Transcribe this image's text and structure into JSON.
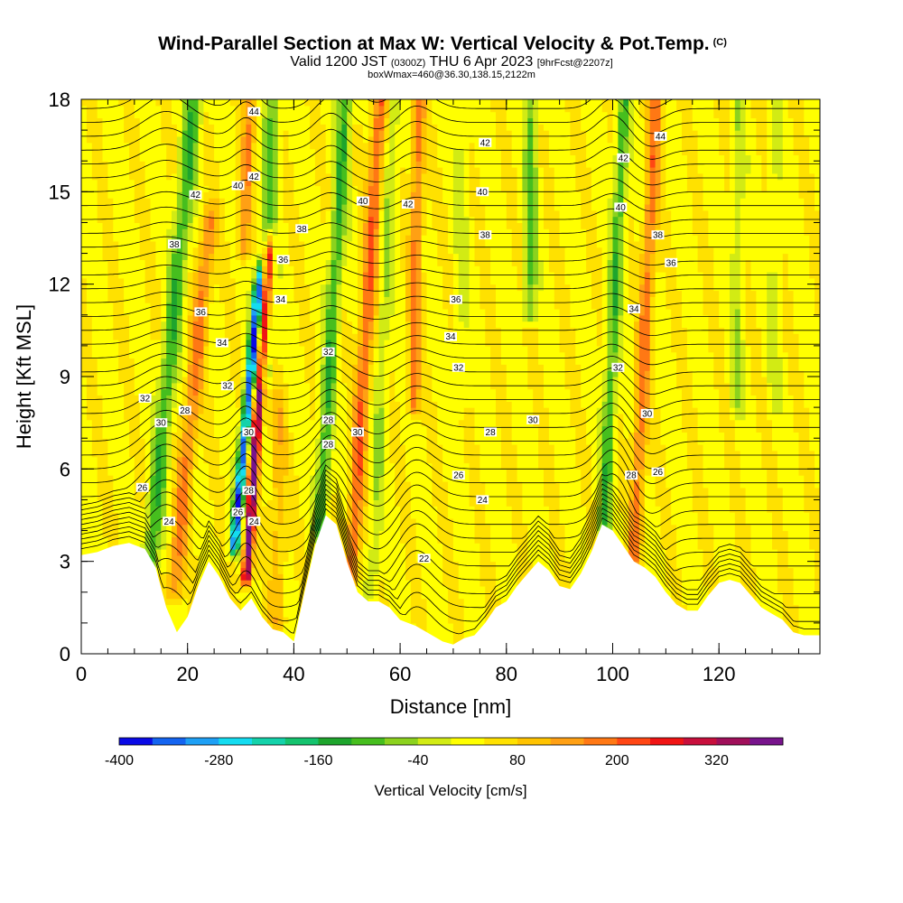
{
  "title": {
    "main": "Wind-Parallel Section at Max W: Vertical Velocity & Pot.Temp.",
    "copyright": "(C)",
    "line2_a": "Valid 1200 JST",
    "line2_b": "(0300Z)",
    "line2_c": "THU 6 Apr 2023",
    "line2_d": "[9hrFcst@2207z]",
    "line3": "boxWmax=460@36.30,138.15,2122m"
  },
  "chart_data": {
    "type": "heatmap",
    "xlabel": "Distance [nm]",
    "ylabel": "Height [Kft MSL]",
    "xlim": [
      0,
      139
    ],
    "ylim": [
      0,
      18
    ],
    "x_ticks": [
      "0",
      "20",
      "40",
      "60",
      "80",
      "100",
      "120"
    ],
    "y_ticks": [
      "0",
      "3",
      "6",
      "9",
      "12",
      "15",
      "18"
    ],
    "colorbar": {
      "label": "Vertical Velocity [cm/s]",
      "tick_labels": [
        "-400",
        "-280",
        "-160",
        "-40",
        "80",
        "200",
        "320"
      ],
      "levels": [
        -400,
        -360,
        -320,
        -280,
        -240,
        -200,
        -160,
        -120,
        -80,
        -40,
        0,
        40,
        80,
        120,
        160,
        200,
        240,
        280,
        320,
        360,
        400
      ],
      "colors": [
        "#0a0ae6",
        "#1464f0",
        "#1ea0f5",
        "#14dcf0",
        "#14d2aa",
        "#14c36e",
        "#1ea52d",
        "#46be1e",
        "#8cd21e",
        "#d2eb14",
        "#ffff00",
        "#ffe100",
        "#ffc300",
        "#ffa014",
        "#ff7814",
        "#ff4614",
        "#f01414",
        "#c80f3c",
        "#a00f5a",
        "#78148c"
      ]
    },
    "theta_contour_labels": [
      {
        "x": 11.5,
        "y": 5.4,
        "text": "26"
      },
      {
        "x": 16.5,
        "y": 4.3,
        "text": "24"
      },
      {
        "x": 15,
        "y": 7.5,
        "text": "30"
      },
      {
        "x": 19.5,
        "y": 7.9,
        "text": "28"
      },
      {
        "x": 12,
        "y": 8.3,
        "text": "32"
      },
      {
        "x": 22.5,
        "y": 11.1,
        "text": "36"
      },
      {
        "x": 26.5,
        "y": 10.1,
        "text": "34"
      },
      {
        "x": 17.5,
        "y": 13.3,
        "text": "38"
      },
      {
        "x": 21.5,
        "y": 14.9,
        "text": "42"
      },
      {
        "x": 29.5,
        "y": 15.2,
        "text": "40"
      },
      {
        "x": 32.5,
        "y": 17.6,
        "text": "44"
      },
      {
        "x": 32.5,
        "y": 15.5,
        "text": "42"
      },
      {
        "x": 27.5,
        "y": 8.7,
        "text": "32"
      },
      {
        "x": 31.5,
        "y": 7.2,
        "text": "30"
      },
      {
        "x": 31.5,
        "y": 5.3,
        "text": "28"
      },
      {
        "x": 29.5,
        "y": 4.6,
        "text": "26"
      },
      {
        "x": 32.5,
        "y": 4.3,
        "text": "24"
      },
      {
        "x": 41.5,
        "y": 13.8,
        "text": "38"
      },
      {
        "x": 38,
        "y": 12.8,
        "text": "36"
      },
      {
        "x": 37.5,
        "y": 11.5,
        "text": "34"
      },
      {
        "x": 46.5,
        "y": 9.8,
        "text": "32"
      },
      {
        "x": 46.5,
        "y": 7.6,
        "text": "28"
      },
      {
        "x": 46.5,
        "y": 6.8,
        "text": "28"
      },
      {
        "x": 52,
        "y": 7.2,
        "text": "30"
      },
      {
        "x": 53,
        "y": 14.7,
        "text": "40"
      },
      {
        "x": 61.5,
        "y": 14.6,
        "text": "42"
      },
      {
        "x": 76,
        "y": 16.6,
        "text": "42"
      },
      {
        "x": 75.5,
        "y": 15,
        "text": "40"
      },
      {
        "x": 76,
        "y": 13.6,
        "text": "38"
      },
      {
        "x": 70.5,
        "y": 11.5,
        "text": "36"
      },
      {
        "x": 69.5,
        "y": 10.3,
        "text": "34"
      },
      {
        "x": 71,
        "y": 9.3,
        "text": "32"
      },
      {
        "x": 85,
        "y": 7.6,
        "text": "30"
      },
      {
        "x": 77,
        "y": 7.2,
        "text": "28"
      },
      {
        "x": 71,
        "y": 5.8,
        "text": "26"
      },
      {
        "x": 75.5,
        "y": 5,
        "text": "24"
      },
      {
        "x": 64.5,
        "y": 3.1,
        "text": "22"
      },
      {
        "x": 109,
        "y": 16.8,
        "text": "44"
      },
      {
        "x": 102,
        "y": 16.1,
        "text": "42"
      },
      {
        "x": 101.5,
        "y": 14.5,
        "text": "40"
      },
      {
        "x": 108.5,
        "y": 13.6,
        "text": "38"
      },
      {
        "x": 111,
        "y": 12.7,
        "text": "36"
      },
      {
        "x": 104,
        "y": 11.2,
        "text": "34"
      },
      {
        "x": 101,
        "y": 9.3,
        "text": "32"
      },
      {
        "x": 106.5,
        "y": 7.8,
        "text": "30"
      },
      {
        "x": 103.5,
        "y": 5.8,
        "text": "28"
      },
      {
        "x": 108.5,
        "y": 5.9,
        "text": "26"
      }
    ]
  }
}
